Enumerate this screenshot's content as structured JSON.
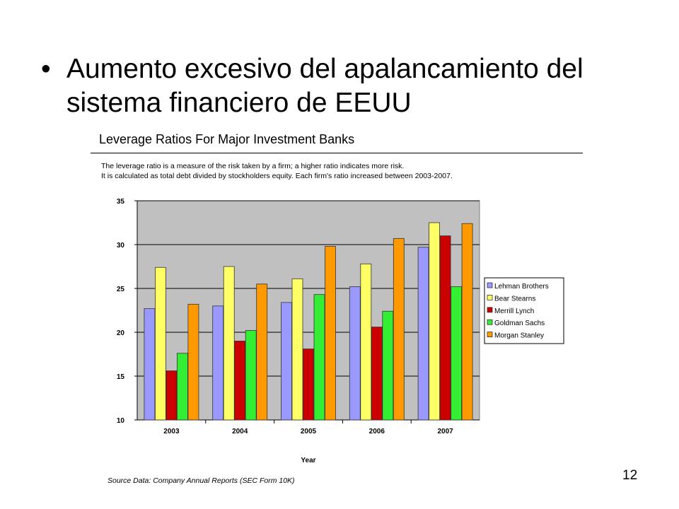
{
  "slide": {
    "bullet_symbol": "•",
    "bullet_text": "Aumento excesivo del apalancamiento del sistema financiero de EEUU",
    "page_number": "12"
  },
  "chart_header": {
    "title": "Leverage Ratios For Major Investment Banks",
    "description_line1": "The leverage ratio is a measure of the risk taken by a firm; a higher ratio indicates more risk.",
    "description_line2": "It is calculated as total debt divided by stockholders equity. Each firm's ratio increased between 2003-2007.",
    "source": "Source Data:  Company Annual Reports (SEC Form 10K)"
  },
  "chart_data": {
    "type": "bar",
    "categories": [
      "2003",
      "2004",
      "2005",
      "2006",
      "2007"
    ],
    "series": [
      {
        "name": "Lehman Brothers",
        "color": "#9999ff",
        "values": [
          22.7,
          23.0,
          23.4,
          25.2,
          29.7
        ]
      },
      {
        "name": "Bear Stearns",
        "color": "#ffff66",
        "values": [
          27.4,
          27.5,
          26.1,
          27.8,
          32.5
        ]
      },
      {
        "name": "Merrill Lynch",
        "color": "#cc0000",
        "values": [
          15.6,
          19.0,
          18.1,
          20.6,
          31.0
        ]
      },
      {
        "name": "Goldman Sachs",
        "color": "#33ee33",
        "values": [
          17.6,
          20.2,
          24.3,
          22.4,
          25.2
        ]
      },
      {
        "name": "Morgan Stanley",
        "color": "#ff9900",
        "values": [
          23.2,
          25.5,
          29.8,
          30.7,
          32.4
        ]
      }
    ],
    "xlabel": "Year",
    "ylabel": "",
    "ylim": [
      10,
      35
    ],
    "yticks": [
      10,
      15,
      20,
      25,
      30,
      35
    ],
    "grid": true,
    "plot_background": "#c0c0c0",
    "legend_position": "right"
  }
}
